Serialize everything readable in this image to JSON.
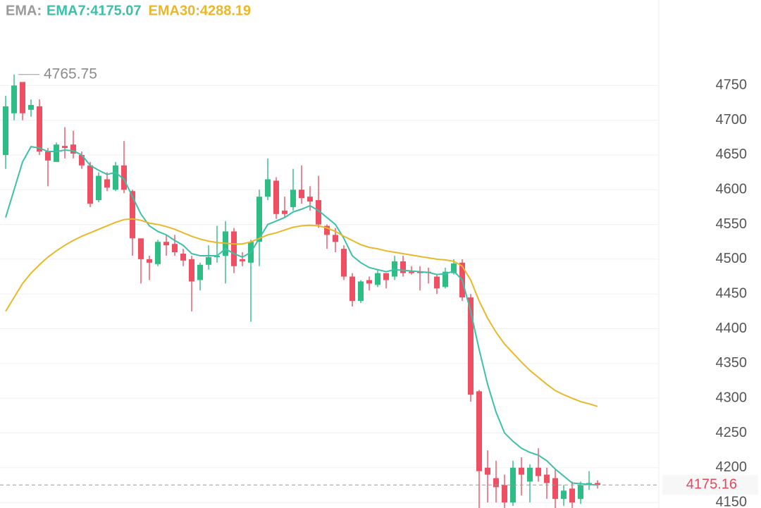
{
  "chart_data": {
    "type": "candlestick",
    "legend": {
      "prefix": "EMA:",
      "items": [
        "EMA7:4175.07",
        "EMA30:4288.19"
      ]
    },
    "up_color": "#2ebd85",
    "down_color": "#ef4f62",
    "ylim": [
      4142,
      4873
    ],
    "yticks": [
      4150,
      4200,
      4250,
      4300,
      4350,
      4400,
      4450,
      4500,
      4550,
      4600,
      4650,
      4700,
      4750
    ],
    "grid": true,
    "max_label": 4765.75,
    "last_price": 4175.16,
    "last_price_color": "#e5485d",
    "open": [
      4650,
      4710,
      4755,
      4715,
      4720,
      4655,
      4640,
      4663,
      4665,
      4650,
      4635,
      4585,
      4615,
      4600,
      4635,
      4598,
      4530,
      4500,
      4493,
      4525,
      4522,
      4508,
      4500,
      4470,
      4492,
      4503,
      4505,
      4540,
      4500,
      4495,
      4525,
      4590,
      4613,
      4570,
      4575,
      4600,
      4590,
      4585,
      4548,
      4535,
      4515,
      4475,
      4440,
      4470,
      4463,
      4480,
      4475,
      4497,
      4482,
      4482,
      4482,
      4475,
      4460,
      4480,
      4495,
      4445,
      4310,
      4200,
      4185,
      4175,
      4150,
      4200,
      4180,
      4200,
      4190,
      4185,
      4155,
      4170,
      4155,
      4175,
      4178
    ],
    "high": [
      4735,
      4765.75,
      4755,
      4730,
      4730,
      4660,
      4668,
      4690,
      4685,
      4655,
      4640,
      4625,
      4625,
      4640,
      4670,
      4600,
      4530,
      4505,
      4528,
      4535,
      4535,
      4515,
      4505,
      4495,
      4520,
      4548,
      4555,
      4545,
      4510,
      4528,
      4600,
      4645,
      4618,
      4590,
      4630,
      4635,
      4605,
      4620,
      4550,
      4545,
      4520,
      4480,
      4470,
      4475,
      4485,
      4480,
      4505,
      4505,
      4490,
      4490,
      4488,
      4478,
      4488,
      4500,
      4500,
      4450,
      4312,
      4225,
      4210,
      4190,
      4210,
      4215,
      4205,
      4228,
      4200,
      4198,
      4175,
      4180,
      4180,
      4195,
      4182
    ],
    "low": [
      4630,
      4700,
      4700,
      4705,
      4650,
      4605,
      4640,
      4645,
      4645,
      4630,
      4575,
      4582,
      4598,
      4598,
      4595,
      4505,
      4465,
      4470,
      4490,
      4505,
      4505,
      4490,
      4425,
      4455,
      4485,
      4495,
      4465,
      4480,
      4490,
      4410,
      4490,
      4585,
      4558,
      4560,
      4570,
      4580,
      4570,
      4545,
      4515,
      4510,
      4470,
      4432,
      4437,
      4455,
      4460,
      4458,
      4470,
      4475,
      4478,
      4455,
      4465,
      4450,
      4458,
      4478,
      4440,
      4295,
      4135,
      4150,
      4150,
      4140,
      4145,
      4160,
      4150,
      4180,
      4155,
      4142,
      4145,
      4142,
      4148,
      4168,
      4170
    ],
    "close": [
      4720,
      4750,
      4710,
      4722,
      4655,
      4642,
      4665,
      4660,
      4652,
      4635,
      4580,
      4620,
      4603,
      4635,
      4600,
      4530,
      4500,
      4495,
      4525,
      4520,
      4510,
      4498,
      4468,
      4492,
      4503,
      4505,
      4540,
      4490,
      4497,
      4525,
      4590,
      4615,
      4565,
      4565,
      4600,
      4588,
      4583,
      4550,
      4535,
      4525,
      4475,
      4440,
      4468,
      4465,
      4480,
      4470,
      4497,
      4480,
      4480,
      4480,
      4480,
      4458,
      4482,
      4494,
      4445,
      4305,
      4195,
      4190,
      4172,
      4150,
      4200,
      4190,
      4200,
      4188,
      4178,
      4155,
      4167,
      4150,
      4175,
      4178,
      4175.16
    ],
    "series": [
      {
        "name": "EMA7",
        "color": "#3cc1a8",
        "values": [
          4560,
          4600,
          4640,
          4662,
          4660,
          4655,
          4655,
          4657,
          4656,
          4650,
          4635,
          4628,
          4622,
          4625,
          4615,
          4590,
          4565,
          4548,
          4540,
          4535,
          4527,
          4520,
          4508,
          4505,
          4505,
          4505,
          4515,
          4508,
          4503,
          4510,
          4530,
          4550,
          4555,
          4560,
          4568,
          4572,
          4577,
          4570,
          4560,
          4550,
          4530,
          4505,
          4495,
          4488,
          4485,
          4482,
          4485,
          4484,
          4483,
          4482,
          4481,
          4478,
          4479,
          4483,
          4470,
          4425,
          4370,
          4320,
          4280,
          4250,
          4238,
          4228,
          4222,
          4218,
          4210,
          4198,
          4188,
          4178,
          4177,
          4176,
          4175.07
        ]
      },
      {
        "name": "EMA30",
        "color": "#e9b82a",
        "values": [
          4425,
          4445,
          4465,
          4480,
          4492,
          4503,
          4512,
          4520,
          4527,
          4533,
          4538,
          4543,
          4548,
          4553,
          4557,
          4558,
          4556,
          4552,
          4550,
          4547,
          4543,
          4538,
          4533,
          4529,
          4526,
          4524,
          4523,
          4522,
          4522,
          4525,
          4530,
          4535,
          4538,
          4542,
          4546,
          4548,
          4549,
          4548,
          4545,
          4540,
          4533,
          4527,
          4521,
          4517,
          4515,
          4512,
          4510,
          4508,
          4506,
          4504,
          4502,
          4500,
          4499,
          4497,
          4490,
          4470,
          4440,
          4415,
          4395,
          4378,
          4365,
          4352,
          4340,
          4330,
          4320,
          4311,
          4305,
          4300,
          4295,
          4292,
          4288.19
        ]
      }
    ]
  }
}
